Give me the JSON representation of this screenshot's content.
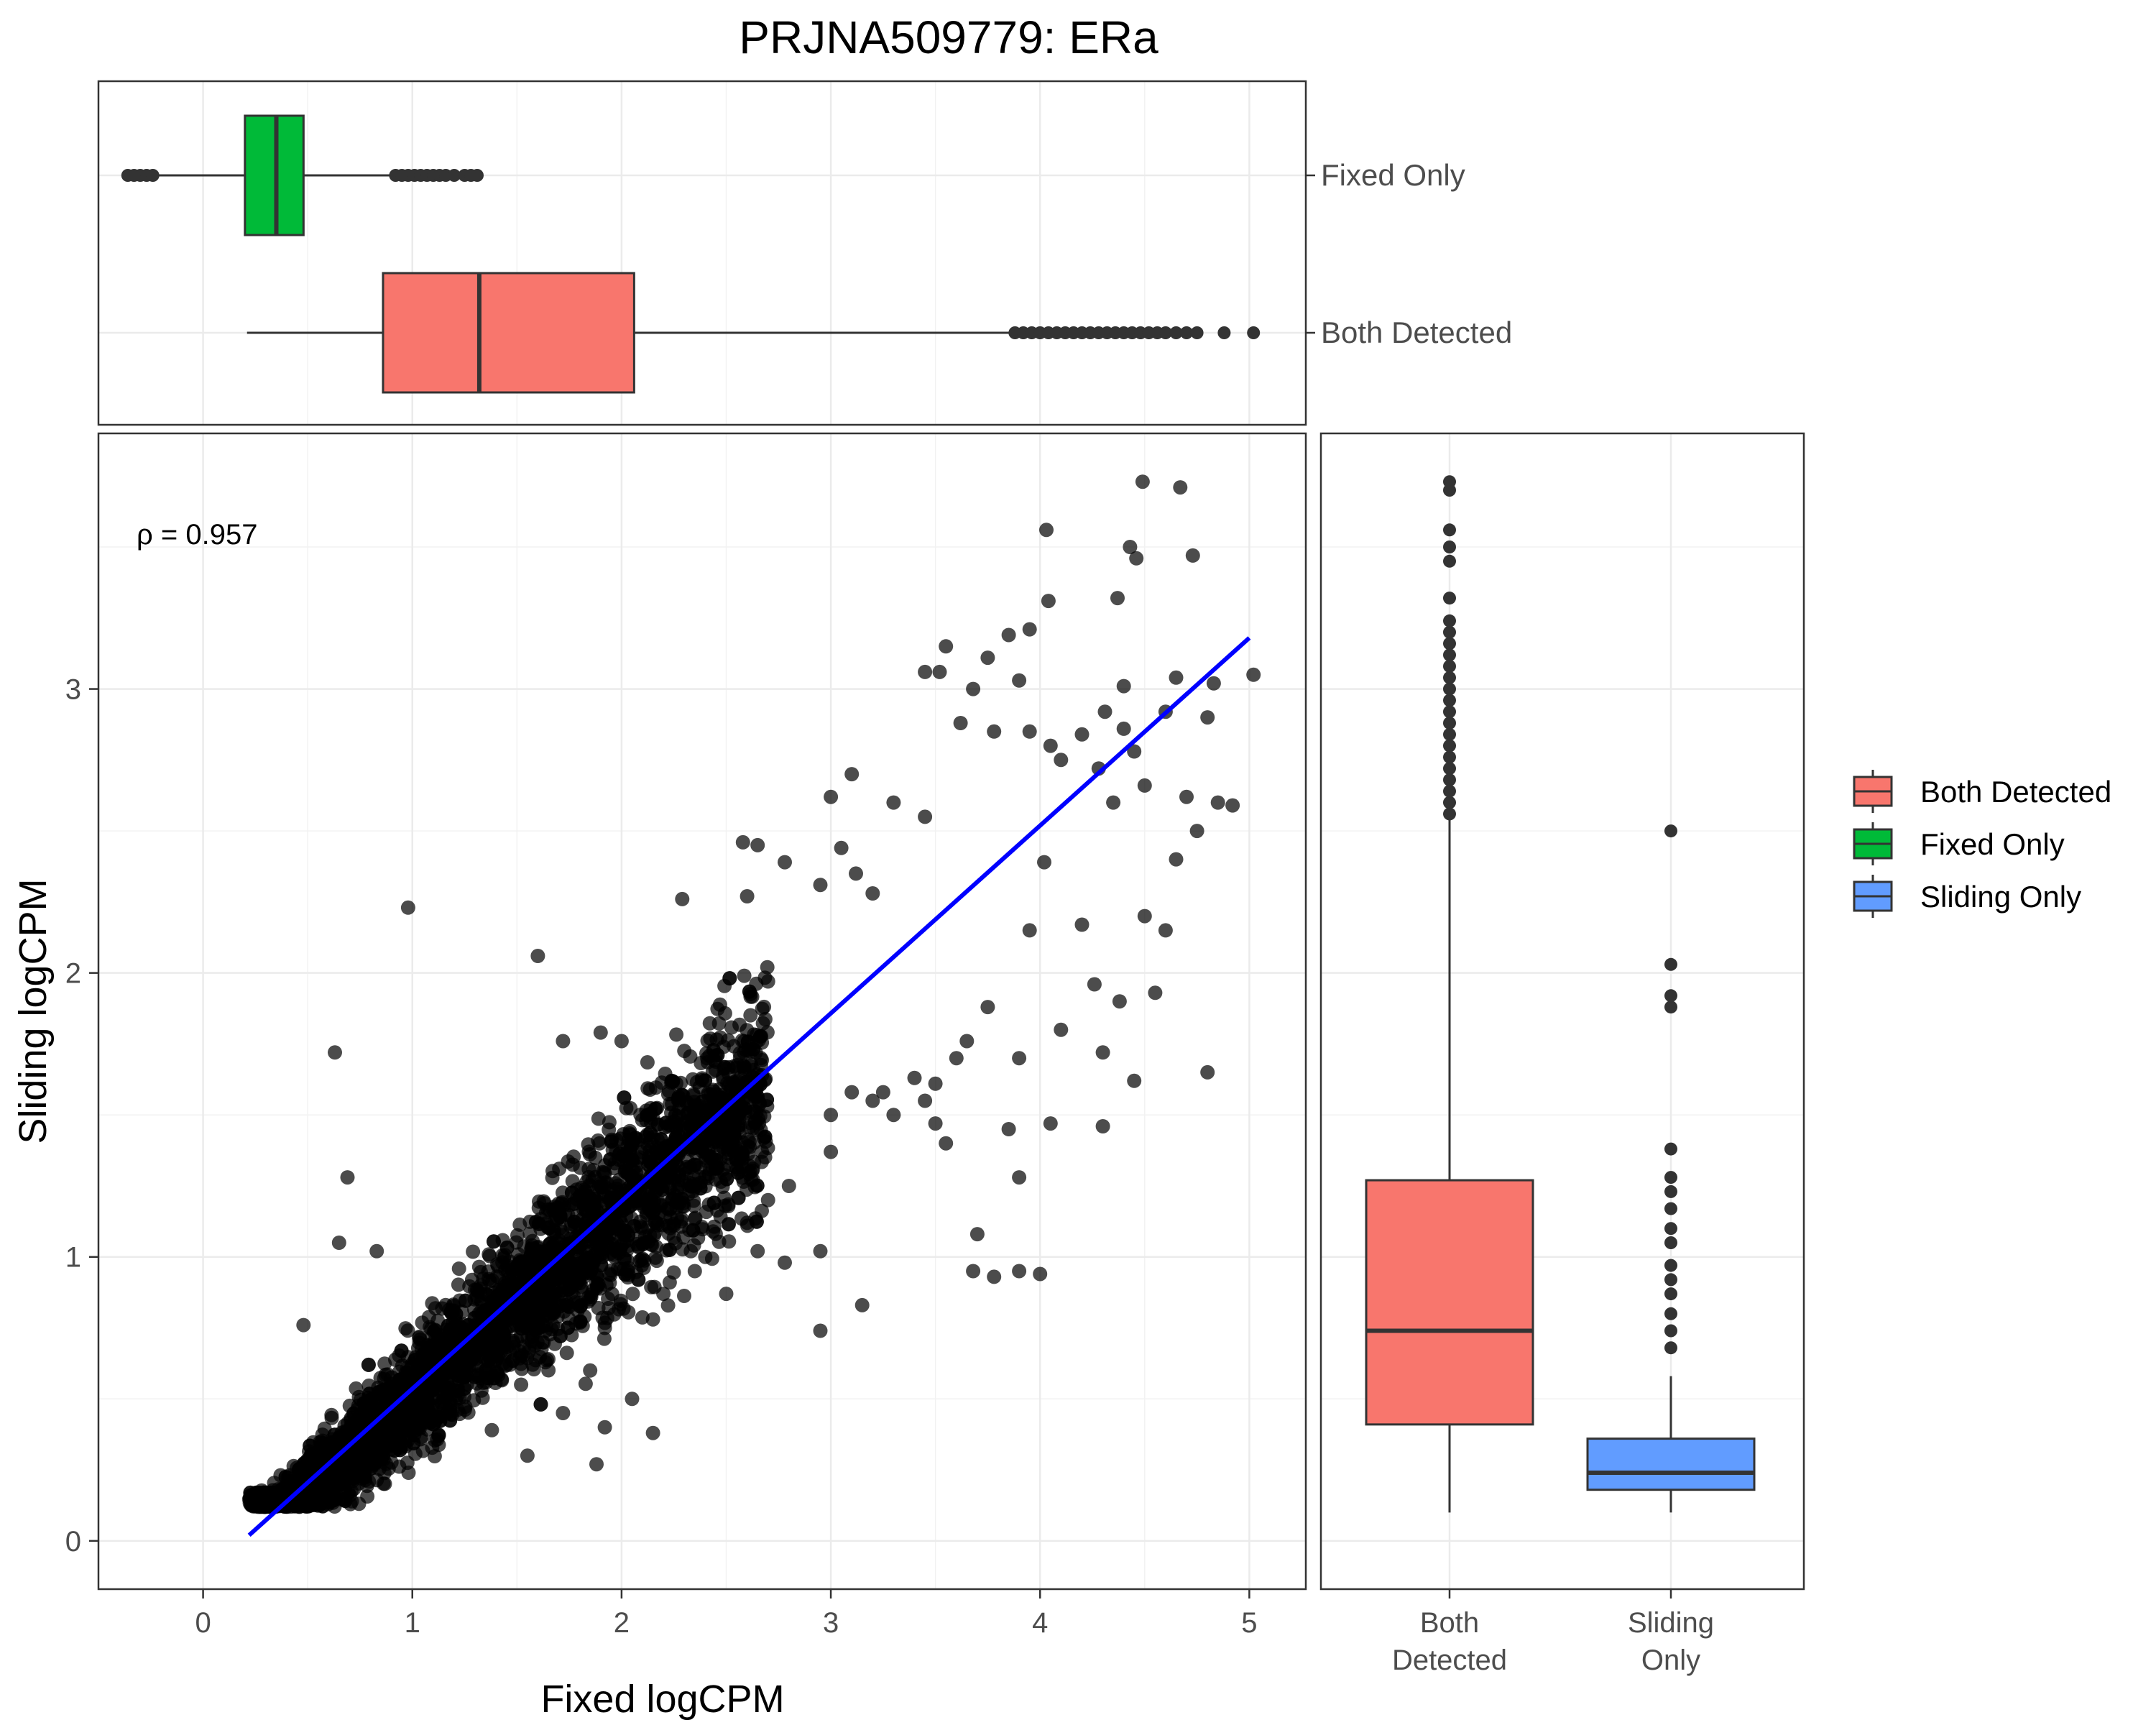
{
  "chart_data": [
    {
      "id": "main",
      "type": "scatter",
      "title": "PRJNA509779: ERa",
      "xlabel": "Fixed logCPM",
      "ylabel": "Sliding logCPM",
      "xlim": [
        -0.5,
        5.27
      ],
      "ylim": [
        -0.17,
        3.9
      ],
      "x_ticks": [
        0,
        1,
        2,
        3,
        4,
        5
      ],
      "y_ticks": [
        0,
        1,
        2,
        3
      ],
      "grid": true,
      "annotation": "ρ = 0.957",
      "fit_line": {
        "color": "#0000FF",
        "x": [
          0.22,
          5.0
        ],
        "y": [
          0.02,
          3.18
        ]
      },
      "point_color": "#000000",
      "point_opacity": 0.7,
      "bulk_trend": "dense cloud of several thousand genes along the fit line, x≈0.2–2.5",
      "points": [
        [
          0.98,
          2.23
        ],
        [
          1.6,
          2.06
        ],
        [
          0.63,
          1.72
        ],
        [
          0.69,
          1.28
        ],
        [
          0.65,
          1.05
        ],
        [
          0.83,
          1.02
        ],
        [
          0.48,
          0.76
        ],
        [
          2.29,
          2.26
        ],
        [
          2.7,
          1.97
        ],
        [
          1.72,
          1.76
        ],
        [
          1.9,
          1.79
        ],
        [
          2.0,
          1.76
        ],
        [
          2.58,
          2.46
        ],
        [
          2.65,
          2.45
        ],
        [
          2.78,
          2.39
        ],
        [
          2.6,
          2.27
        ],
        [
          2.95,
          2.31
        ],
        [
          3.05,
          2.44
        ],
        [
          3.12,
          2.35
        ],
        [
          3.0,
          2.62
        ],
        [
          3.1,
          2.7
        ],
        [
          3.3,
          2.6
        ],
        [
          3.2,
          2.28
        ],
        [
          3.45,
          2.55
        ],
        [
          3.55,
          3.15
        ],
        [
          3.85,
          3.19
        ],
        [
          3.75,
          3.11
        ],
        [
          3.45,
          3.06
        ],
        [
          3.52,
          3.06
        ],
        [
          3.68,
          3.0
        ],
        [
          3.9,
          3.03
        ],
        [
          3.62,
          2.88
        ],
        [
          3.78,
          2.85
        ],
        [
          3.95,
          2.85
        ],
        [
          4.05,
          2.8
        ],
        [
          4.2,
          2.84
        ],
        [
          4.4,
          2.86
        ],
        [
          4.6,
          2.92
        ],
        [
          4.1,
          2.75
        ],
        [
          4.28,
          2.72
        ],
        [
          4.35,
          2.6
        ],
        [
          4.5,
          2.66
        ],
        [
          4.45,
          2.78
        ],
        [
          4.7,
          2.62
        ],
        [
          4.75,
          2.5
        ],
        [
          4.85,
          2.6
        ],
        [
          4.65,
          2.4
        ],
        [
          4.6,
          2.15
        ],
        [
          4.92,
          2.59
        ],
        [
          5.02,
          3.05
        ],
        [
          4.8,
          2.9
        ],
        [
          4.65,
          3.04
        ],
        [
          4.83,
          3.02
        ],
        [
          4.03,
          3.56
        ],
        [
          4.49,
          3.73
        ],
        [
          4.67,
          3.71
        ],
        [
          4.43,
          3.5
        ],
        [
          4.46,
          3.46
        ],
        [
          4.73,
          3.47
        ],
        [
          4.37,
          3.32
        ],
        [
          4.04,
          3.31
        ],
        [
          3.95,
          3.21
        ],
        [
          4.4,
          3.01
        ],
        [
          4.31,
          2.92
        ],
        [
          4.02,
          2.39
        ],
        [
          3.95,
          2.15
        ],
        [
          4.2,
          2.17
        ],
        [
          4.5,
          2.2
        ],
        [
          4.38,
          1.9
        ],
        [
          4.26,
          1.96
        ],
        [
          4.55,
          1.93
        ],
        [
          4.1,
          1.8
        ],
        [
          3.75,
          1.88
        ],
        [
          3.9,
          1.7
        ],
        [
          4.3,
          1.72
        ],
        [
          4.45,
          1.62
        ],
        [
          4.8,
          1.65
        ],
        [
          4.05,
          1.47
        ],
        [
          4.3,
          1.46
        ],
        [
          3.9,
          1.28
        ],
        [
          3.65,
          1.76
        ],
        [
          3.6,
          1.7
        ],
        [
          3.5,
          1.61
        ],
        [
          3.4,
          1.63
        ],
        [
          3.2,
          1.55
        ],
        [
          3.3,
          1.5
        ],
        [
          3.1,
          1.58
        ],
        [
          3.0,
          1.5
        ],
        [
          3.5,
          1.47
        ],
        [
          3.25,
          1.58
        ],
        [
          3.85,
          1.45
        ],
        [
          3.45,
          1.55
        ],
        [
          3.55,
          1.4
        ],
        [
          3.0,
          1.37
        ],
        [
          2.8,
          1.25
        ],
        [
          2.7,
          1.2
        ],
        [
          2.6,
          1.12
        ],
        [
          2.5,
          0.87
        ],
        [
          2.95,
          1.02
        ],
        [
          3.15,
          0.83
        ],
        [
          2.95,
          0.74
        ],
        [
          2.65,
          1.02
        ],
        [
          2.78,
          0.98
        ],
        [
          2.4,
          1.0
        ],
        [
          2.35,
          0.95
        ],
        [
          2.23,
          0.91
        ],
        [
          2.2,
          0.87
        ],
        [
          2.15,
          0.78
        ],
        [
          3.7,
          1.08
        ],
        [
          3.9,
          0.95
        ],
        [
          3.78,
          0.93
        ],
        [
          4.0,
          0.94
        ],
        [
          3.68,
          0.95
        ],
        [
          1.78,
          0.84
        ],
        [
          1.92,
          0.75
        ],
        [
          1.55,
          0.75
        ],
        [
          1.65,
          0.64
        ],
        [
          1.45,
          0.62
        ],
        [
          1.52,
          0.55
        ],
        [
          1.85,
          0.6
        ],
        [
          1.72,
          0.45
        ],
        [
          2.05,
          0.5
        ],
        [
          1.92,
          0.4
        ],
        [
          1.38,
          0.39
        ],
        [
          1.55,
          0.3
        ],
        [
          1.88,
          0.27
        ],
        [
          2.15,
          0.38
        ]
      ]
    },
    {
      "id": "top",
      "type": "box",
      "orientation": "horizontal",
      "axis": "Fixed logCPM",
      "categories": [
        "Fixed Only",
        "Both Detected"
      ],
      "boxes": [
        {
          "name": "Fixed Only",
          "color": "#00BA38",
          "whisker_low": -0.33,
          "q1": 0.2,
          "median": 0.35,
          "q3": 0.48,
          "whisker_high": 0.9,
          "outliers": [
            -0.36,
            -0.33,
            -0.3,
            -0.27,
            -0.24,
            0.92,
            0.95,
            0.98,
            1.01,
            1.04,
            1.07,
            1.1,
            1.13,
            1.16,
            1.2,
            1.25,
            1.28,
            1.31
          ]
        },
        {
          "name": "Both Detected",
          "color": "#F8766D",
          "whisker_low": 0.21,
          "q1": 0.86,
          "median": 1.32,
          "q3": 2.06,
          "whisker_high": 3.87,
          "outliers": [
            3.88,
            3.92,
            3.96,
            4.0,
            4.04,
            4.08,
            4.12,
            4.16,
            4.2,
            4.24,
            4.28,
            4.32,
            4.36,
            4.4,
            4.44,
            4.48,
            4.52,
            4.56,
            4.6,
            4.65,
            4.7,
            4.75,
            4.88,
            5.02
          ]
        }
      ]
    },
    {
      "id": "right",
      "type": "box",
      "orientation": "vertical",
      "axis": "Sliding logCPM",
      "categories": [
        "Both Detected",
        "Sliding Only"
      ],
      "boxes": [
        {
          "name": "Both Detected",
          "label_lines": [
            "Both",
            "Detected"
          ],
          "color": "#F8766D",
          "whisker_low": 0.1,
          "q1": 0.41,
          "median": 0.74,
          "q3": 1.27,
          "whisker_high": 2.54,
          "outliers": [
            2.56,
            2.6,
            2.64,
            2.68,
            2.72,
            2.76,
            2.8,
            2.84,
            2.88,
            2.92,
            2.96,
            3.0,
            3.04,
            3.08,
            3.12,
            3.16,
            3.2,
            3.24,
            3.32,
            3.45,
            3.5,
            3.56,
            3.7,
            3.73
          ]
        },
        {
          "name": "Sliding Only",
          "label_lines": [
            "Sliding",
            "Only"
          ],
          "color": "#619CFF",
          "whisker_low": 0.1,
          "q1": 0.18,
          "median": 0.24,
          "q3": 0.36,
          "whisker_high": 0.58,
          "outliers": [
            0.68,
            0.74,
            0.8,
            0.87,
            0.92,
            0.97,
            1.05,
            1.1,
            1.17,
            1.23,
            1.28,
            1.38,
            1.88,
            1.92,
            2.03,
            2.5
          ]
        }
      ]
    }
  ],
  "legend": {
    "placement": "right",
    "items": [
      {
        "label": "Both Detected",
        "color": "#F8766D"
      },
      {
        "label": "Fixed Only",
        "color": "#00BA38"
      },
      {
        "label": "Sliding Only",
        "color": "#619CFF"
      }
    ]
  }
}
